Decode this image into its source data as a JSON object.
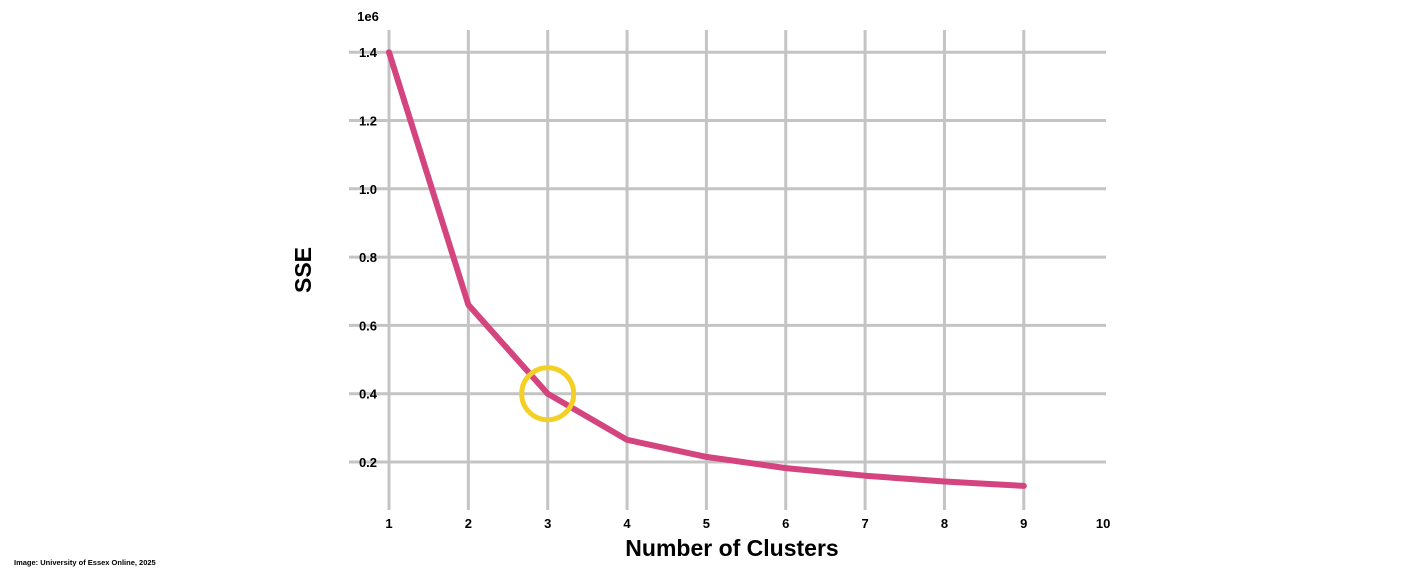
{
  "chart_data": {
    "type": "line",
    "xlabel": "Number of Clusters",
    "ylabel": "SSE",
    "y_exponent_label": "1e6",
    "x": [
      1,
      2,
      3,
      4,
      5,
      6,
      7,
      8,
      9
    ],
    "series": [
      {
        "values": [
          1400000,
          660000,
          400000,
          265000,
          215000,
          182000,
          160000,
          143000,
          130000
        ]
      }
    ],
    "x_ticks": [
      1,
      2,
      3,
      4,
      5,
      6,
      7,
      8,
      9,
      10
    ],
    "x_tick_labels": [
      "1",
      "2",
      "3",
      "4",
      "5",
      "6",
      "7",
      "8",
      "9",
      "10"
    ],
    "y_ticks": [
      200000,
      400000,
      600000,
      800000,
      1000000,
      1200000,
      1400000
    ],
    "y_tick_labels": [
      "0.2",
      "0.4",
      "0.6",
      "0.8",
      "1.0",
      "1.2",
      "1.4"
    ],
    "xlim": [
      1,
      10
    ],
    "ylim": [
      130000,
      1400000
    ],
    "grid": true,
    "highlight": {
      "x": 3,
      "y": 400000,
      "shape": "circle",
      "color": "#f2d025"
    },
    "colors": {
      "line": "#d4447e",
      "grid": "#c4c4c4"
    }
  },
  "credit": "Image: University of Essex Online, 2025"
}
